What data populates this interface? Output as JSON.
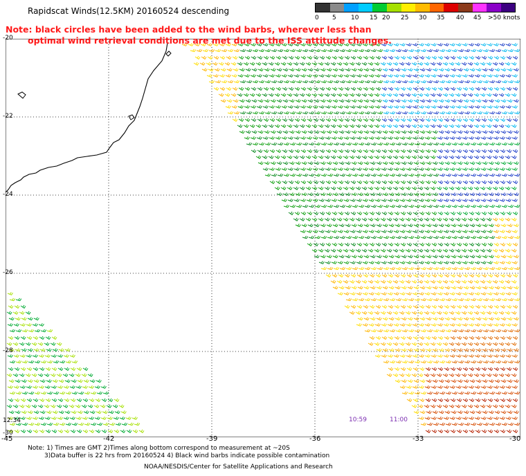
{
  "title": "Rapidscat Winds(12.5KM) 20160524 descending",
  "note": {
    "line1": "Note: black circles have been added to the wind barbs, wherever less than",
    "line2": "optimal wind retrieval conditions are met due to the ISS attitude changes."
  },
  "scale": {
    "labels": [
      "0",
      "5",
      "10",
      "15",
      "20",
      "25",
      "30",
      "35",
      "40",
      "45",
      ">50 knots"
    ],
    "colors": [
      "#333333",
      "#8a8a8a",
      "#00a0ff",
      "#00ccff",
      "#00cc33",
      "#a6e000",
      "#ffee00",
      "#ffbb00",
      "#ff6600",
      "#dd0000",
      "#8b3a1a",
      "#ff33ff",
      "#8a00c8",
      "#3c0080"
    ]
  },
  "axes": {
    "lat_labels": [
      "-20",
      "-22",
      "-24",
      "-26",
      "-28",
      "-30"
    ],
    "lon_labels": [
      "-45",
      "-42",
      "-39",
      "-36",
      "-33",
      "-30"
    ]
  },
  "times": {
    "left_edge": "12:34",
    "pass1": "10:59",
    "pass2": "11:00"
  },
  "footer": {
    "line1": "Note: 1) Times are GMT 2)Times along bottom correspond to measurement at ~20S",
    "line2": "3)Data buffer is 22 hrs from 20160524 4) Black wind barbs indicate possible contamination",
    "credit": "NOAA/NESDIS/Center for Satellite Applications and Research"
  }
}
